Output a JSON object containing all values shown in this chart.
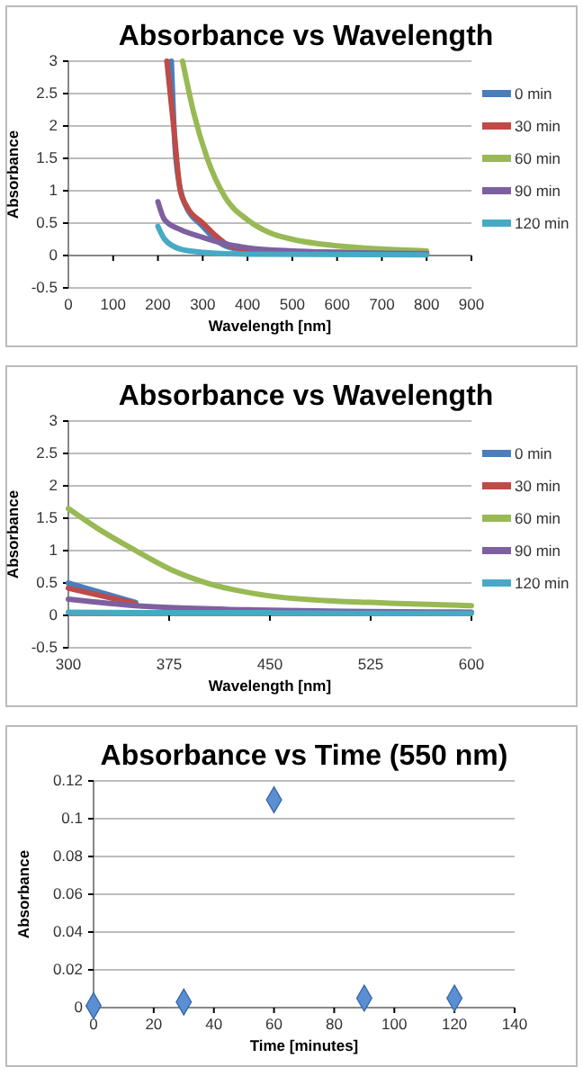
{
  "chart_data": [
    {
      "type": "line",
      "title": "Absorbance vs Wavelength",
      "xlabel": "Wavelength [nm]",
      "ylabel": "Absorbance",
      "xlim": [
        0,
        900
      ],
      "xticks": [
        0,
        100,
        200,
        300,
        400,
        500,
        600,
        700,
        800,
        900
      ],
      "ylim": [
        -0.5,
        3
      ],
      "yticks": [
        -0.5,
        0,
        0.5,
        1,
        1.5,
        2,
        2.5,
        3
      ],
      "grid": "y",
      "legend": "right",
      "marker": "none",
      "line_style": "solid",
      "series": [
        {
          "name": "0 min",
          "color": "#4a7ebb",
          "x": [
            230,
            240,
            260,
            300,
            350,
            400,
            500,
            600,
            800
          ],
          "values": [
            3,
            1.5,
            0.8,
            0.45,
            0.15,
            0.08,
            0.04,
            0.03,
            0.02
          ]
        },
        {
          "name": "30 min",
          "color": "#be4b48",
          "x": [
            220,
            235,
            250,
            265,
            300,
            330,
            360,
            400,
            500,
            600,
            800
          ],
          "values": [
            3,
            2,
            1,
            0.75,
            0.5,
            0.3,
            0.15,
            0.1,
            0.06,
            0.05,
            0.04
          ]
        },
        {
          "name": "60 min",
          "color": "#98b954",
          "x": [
            255,
            280,
            310,
            350,
            400,
            450,
            500,
            600,
            700,
            800
          ],
          "values": [
            3,
            2.2,
            1.5,
            0.9,
            0.55,
            0.35,
            0.25,
            0.15,
            0.1,
            0.07
          ]
        },
        {
          "name": "90 min",
          "color": "#7d60a0",
          "x": [
            200,
            215,
            250,
            300,
            350,
            400,
            500,
            600,
            800
          ],
          "values": [
            0.83,
            0.55,
            0.4,
            0.28,
            0.18,
            0.12,
            0.07,
            0.05,
            0.03
          ]
        },
        {
          "name": "120 min",
          "color": "#46aac5",
          "x": [
            200,
            215,
            250,
            300,
            400,
            800
          ],
          "values": [
            0.45,
            0.25,
            0.1,
            0.05,
            0.02,
            0.01
          ]
        }
      ]
    },
    {
      "type": "line",
      "title": "Absorbance vs Wavelength",
      "xlabel": "Wavelength [nm]",
      "ylabel": "Absorbance",
      "xlim": [
        300,
        600
      ],
      "xticks": [
        300,
        375,
        450,
        525,
        600
      ],
      "ylim": [
        -0.5,
        3
      ],
      "yticks": [
        -0.5,
        0,
        0.5,
        1,
        1.5,
        2,
        2.5,
        3
      ],
      "grid": "y",
      "legend": "right",
      "marker": "none",
      "line_style": "solid",
      "series": [
        {
          "name": "0 min",
          "color": "#4a7ebb",
          "x": [
            300,
            325,
            350
          ],
          "values": [
            0.5,
            0.35,
            0.2
          ]
        },
        {
          "name": "30 min",
          "color": "#be4b48",
          "x": [
            300,
            325,
            350
          ],
          "values": [
            0.42,
            0.3,
            0.18
          ]
        },
        {
          "name": "60 min",
          "color": "#98b954",
          "x": [
            300,
            325,
            350,
            375,
            400,
            450,
            500,
            525,
            550,
            600
          ],
          "values": [
            1.65,
            1.3,
            1,
            0.72,
            0.52,
            0.3,
            0.22,
            0.2,
            0.18,
            0.15
          ]
        },
        {
          "name": "90 min",
          "color": "#7d60a0",
          "x": [
            300,
            350,
            375,
            450,
            525,
            600
          ],
          "values": [
            0.25,
            0.15,
            0.12,
            0.08,
            0.06,
            0.05
          ]
        },
        {
          "name": "120 min",
          "color": "#46aac5",
          "x": [
            300,
            375,
            450,
            525,
            600
          ],
          "values": [
            0.05,
            0.04,
            0.04,
            0.03,
            0.03
          ]
        }
      ]
    },
    {
      "type": "scatter",
      "title": "Absorbance vs Time (550 nm)",
      "xlabel": "Time [minutes]",
      "ylabel": "Absorbance",
      "xlim": [
        0,
        140
      ],
      "xticks": [
        0,
        20,
        40,
        60,
        80,
        100,
        120,
        140
      ],
      "ylim": [
        0,
        0.12
      ],
      "yticks": [
        0,
        0.02,
        0.04,
        0.06,
        0.08,
        0.1,
        0.12
      ],
      "grid": "y",
      "legend": false,
      "marker": "diamond",
      "series": [
        {
          "color": "#5b8fd4",
          "x": [
            0,
            30,
            60,
            90,
            120
          ],
          "values": [
            0.001,
            0.003,
            0.11,
            0.005,
            0.005
          ]
        }
      ]
    }
  ]
}
